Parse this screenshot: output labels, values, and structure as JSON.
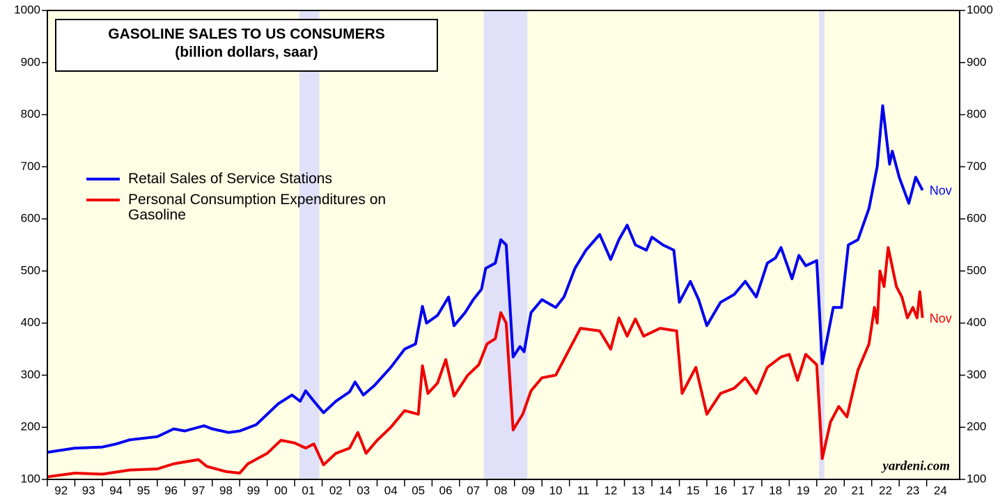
{
  "chart_data": {
    "type": "line",
    "title": "GASOLINE SALES TO US CONSUMERS",
    "subtitle": "(billion dollars, saar)",
    "source": "yardeni.com",
    "background": "#ffffe6",
    "shade_color": "#e0e0f8",
    "shaded_periods": [
      [
        2001.17,
        2001.9
      ],
      [
        2007.88,
        2009.47
      ],
      [
        2020.08,
        2020.28
      ]
    ],
    "xlim": [
      1992,
      2025.2
    ],
    "xticks": [
      {
        "value": 1992,
        "label": "92"
      },
      {
        "value": 1993,
        "label": "93"
      },
      {
        "value": 1994,
        "label": "94"
      },
      {
        "value": 1995,
        "label": "95"
      },
      {
        "value": 1996,
        "label": "96"
      },
      {
        "value": 1997,
        "label": "97"
      },
      {
        "value": 1998,
        "label": "98"
      },
      {
        "value": 1999,
        "label": "99"
      },
      {
        "value": 2000,
        "label": "00"
      },
      {
        "value": 2001,
        "label": "01"
      },
      {
        "value": 2002,
        "label": "02"
      },
      {
        "value": 2003,
        "label": "03"
      },
      {
        "value": 2004,
        "label": "04"
      },
      {
        "value": 2005,
        "label": "05"
      },
      {
        "value": 2006,
        "label": "06"
      },
      {
        "value": 2007,
        "label": "07"
      },
      {
        "value": 2008,
        "label": "08"
      },
      {
        "value": 2009,
        "label": "09"
      },
      {
        "value": 2010,
        "label": "10"
      },
      {
        "value": 2011,
        "label": "11"
      },
      {
        "value": 2012,
        "label": "12"
      },
      {
        "value": 2013,
        "label": "13"
      },
      {
        "value": 2014,
        "label": "14"
      },
      {
        "value": 2015,
        "label": "15"
      },
      {
        "value": 2016,
        "label": "16"
      },
      {
        "value": 2017,
        "label": "17"
      },
      {
        "value": 2018,
        "label": "18"
      },
      {
        "value": 2019,
        "label": "19"
      },
      {
        "value": 2020,
        "label": "20"
      },
      {
        "value": 2021,
        "label": "21"
      },
      {
        "value": 2022,
        "label": "22"
      },
      {
        "value": 2023,
        "label": "23"
      },
      {
        "value": 2024,
        "label": "24"
      }
    ],
    "ylim": [
      100,
      1000
    ],
    "yticks": [
      100,
      200,
      300,
      400,
      500,
      600,
      700,
      800,
      900,
      1000
    ],
    "series": [
      {
        "name": "Retail Sales of Service Stations",
        "color": "#0000ee",
        "end_label": "Nov",
        "x": [
          1992.0,
          1993.0,
          1994.0,
          1994.5,
          1995.0,
          1996.0,
          1996.6,
          1997.0,
          1997.7,
          1998.0,
          1998.6,
          1999.0,
          1999.6,
          2000.0,
          2000.4,
          2000.9,
          2001.2,
          2001.4,
          2001.7,
          2002.05,
          2002.5,
          2003.0,
          2003.2,
          2003.5,
          2003.9,
          2004.5,
          2005.0,
          2005.4,
          2005.65,
          2005.8,
          2006.2,
          2006.6,
          2006.8,
          2007.2,
          2007.5,
          2007.8,
          2007.95,
          2008.3,
          2008.5,
          2008.7,
          2008.95,
          2009.2,
          2009.35,
          2009.6,
          2010.0,
          2010.5,
          2010.8,
          2011.2,
          2011.6,
          2012.1,
          2012.5,
          2012.8,
          2013.1,
          2013.4,
          2013.8,
          2014.0,
          2014.4,
          2014.8,
          2015.0,
          2015.4,
          2015.7,
          2016.0,
          2016.5,
          2017.0,
          2017.4,
          2017.8,
          2018.2,
          2018.5,
          2018.7,
          2019.1,
          2019.35,
          2019.6,
          2020.0,
          2020.2,
          2020.6,
          2020.9,
          2021.15,
          2021.5,
          2021.9,
          2022.2,
          2022.4,
          2022.65,
          2022.75,
          2023.0,
          2023.35,
          2023.6,
          2023.85
        ],
        "values": [
          152,
          160,
          162,
          168,
          176,
          182,
          197,
          193,
          203,
          197,
          190,
          193,
          205,
          225,
          245,
          262,
          250,
          270,
          250,
          228,
          250,
          268,
          287,
          262,
          280,
          315,
          350,
          360,
          432,
          400,
          415,
          450,
          395,
          420,
          445,
          465,
          505,
          515,
          560,
          550,
          335,
          355,
          345,
          420,
          445,
          430,
          450,
          505,
          540,
          570,
          522,
          560,
          588,
          550,
          540,
          565,
          550,
          540,
          440,
          480,
          445,
          395,
          440,
          455,
          480,
          450,
          515,
          525,
          545,
          485,
          530,
          510,
          520,
          322,
          430,
          430,
          550,
          560,
          620,
          700,
          817,
          705,
          730,
          680,
          630,
          680,
          655
        ]
      },
      {
        "name": "Personal Consumption Expenditures on Gasoline",
        "color": "#ee0000",
        "end_label": "Nov",
        "x": [
          1992.0,
          1993.0,
          1994.0,
          1995.0,
          1996.0,
          1996.6,
          1997.5,
          1997.8,
          1998.5,
          1999.0,
          1999.3,
          2000.0,
          2000.5,
          2001.0,
          2001.4,
          2001.7,
          2002.05,
          2002.5,
          2003.0,
          2003.3,
          2003.6,
          2004.0,
          2004.5,
          2005.0,
          2005.5,
          2005.65,
          2005.85,
          2006.2,
          2006.5,
          2006.8,
          2007.3,
          2007.7,
          2008.0,
          2008.3,
          2008.5,
          2008.7,
          2008.95,
          2009.3,
          2009.6,
          2010.0,
          2010.5,
          2011.0,
          2011.4,
          2012.1,
          2012.5,
          2012.8,
          2013.1,
          2013.4,
          2013.7,
          2014.3,
          2014.9,
          2015.1,
          2015.6,
          2016.0,
          2016.5,
          2017.0,
          2017.4,
          2017.8,
          2018.2,
          2018.7,
          2019.0,
          2019.3,
          2019.6,
          2020.0,
          2020.2,
          2020.5,
          2020.8,
          2021.1,
          2021.5,
          2021.9,
          2022.1,
          2022.2,
          2022.3,
          2022.45,
          2022.6,
          2022.9,
          2023.1,
          2023.3,
          2023.5,
          2023.65,
          2023.75,
          2023.85
        ],
        "values": [
          105,
          112,
          110,
          118,
          120,
          130,
          138,
          125,
          115,
          112,
          130,
          150,
          175,
          170,
          160,
          168,
          128,
          150,
          160,
          190,
          150,
          175,
          200,
          232,
          225,
          318,
          265,
          285,
          330,
          260,
          300,
          320,
          360,
          370,
          420,
          400,
          195,
          225,
          270,
          295,
          300,
          350,
          390,
          385,
          350,
          410,
          375,
          408,
          375,
          390,
          385,
          265,
          315,
          225,
          265,
          275,
          295,
          265,
          315,
          335,
          340,
          290,
          340,
          320,
          140,
          210,
          240,
          220,
          310,
          360,
          430,
          400,
          500,
          470,
          545,
          470,
          450,
          410,
          430,
          410,
          460,
          410
        ]
      }
    ]
  }
}
